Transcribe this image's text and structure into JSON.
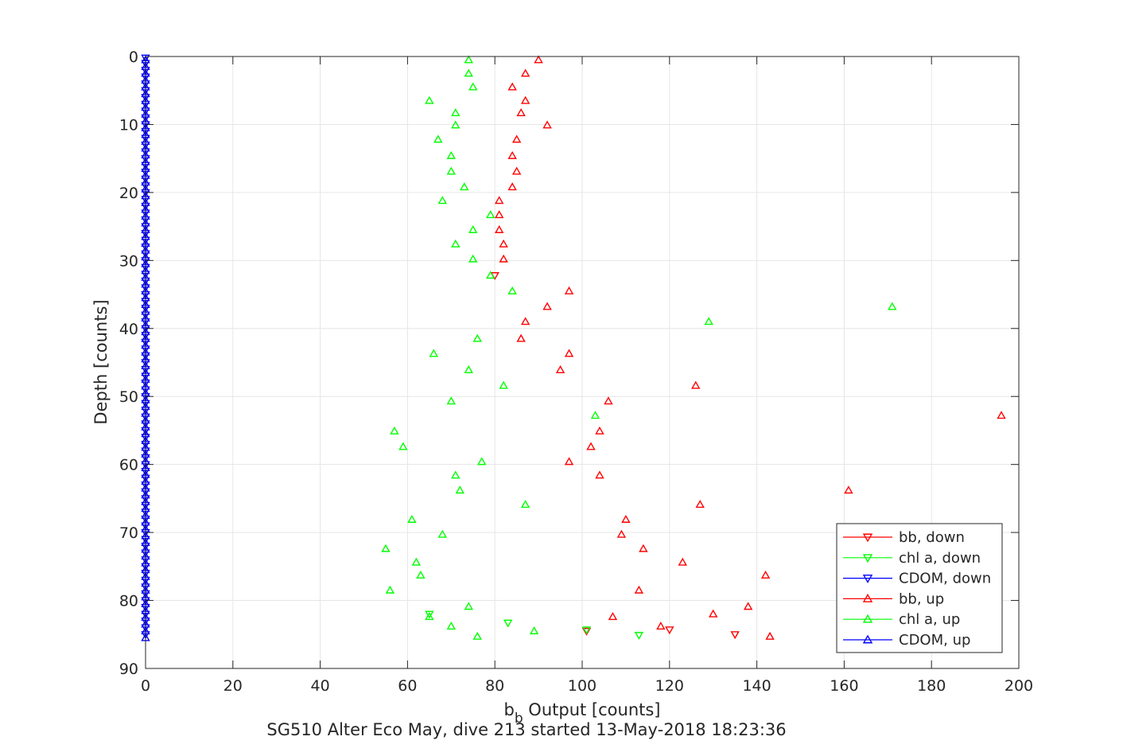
{
  "chart_data": {
    "type": "scatter",
    "title": "SG510 Alter Eco May, dive 213 started 13-May-2018 18:23:36",
    "xlabel": "b_b Output [counts]",
    "xlabel_main": "b",
    "xlabel_sub": "b",
    "xlabel_rest": " Output [counts]",
    "ylabel": "Depth [counts]",
    "xlim": [
      0,
      200
    ],
    "ylim": [
      0,
      90
    ],
    "y_reversed": true,
    "grid": true,
    "x_ticks": [
      0,
      20,
      40,
      60,
      80,
      100,
      120,
      140,
      160,
      180,
      200
    ],
    "y_ticks": [
      0,
      10,
      20,
      30,
      40,
      50,
      60,
      70,
      80,
      90
    ],
    "legend_position": "bottom-right",
    "series": [
      {
        "name": "bb, down",
        "color": "#ff0000",
        "marker": "triangle-down",
        "points": [
          [
            80,
            32.2
          ],
          [
            101,
            84.5
          ],
          [
            120,
            84.3
          ],
          [
            135,
            85.0
          ]
        ]
      },
      {
        "name": "chl a, down",
        "color": "#00ff00",
        "marker": "triangle-down",
        "points": [
          [
            65,
            82.0
          ],
          [
            83,
            83.3
          ],
          [
            101,
            84.3
          ],
          [
            113,
            85.1
          ]
        ]
      },
      {
        "name": "CDOM, down",
        "color": "#0000ff",
        "marker": "triangle-down",
        "points": [
          [
            0,
            0.2
          ],
          [
            0,
            1.0
          ],
          [
            0,
            2.0
          ],
          [
            0,
            3.0
          ],
          [
            0,
            4.0
          ],
          [
            0,
            5.0
          ],
          [
            0,
            6.0
          ],
          [
            0,
            7.0
          ],
          [
            0,
            8.0
          ],
          [
            0,
            9.0
          ],
          [
            0,
            10.0
          ],
          [
            0,
            11.0
          ],
          [
            0,
            12.0
          ],
          [
            0,
            13.0
          ],
          [
            0,
            14.0
          ],
          [
            0,
            15.0
          ],
          [
            0,
            16.0
          ],
          [
            0,
            17.0
          ],
          [
            0,
            18.0
          ],
          [
            0,
            19.0
          ],
          [
            0,
            20.0
          ],
          [
            0,
            21.0
          ],
          [
            0,
            22.0
          ],
          [
            0,
            23.0
          ],
          [
            0,
            24.0
          ],
          [
            0,
            25.0
          ],
          [
            0,
            26.0
          ],
          [
            0,
            27.0
          ],
          [
            0,
            28.0
          ],
          [
            0,
            29.0
          ],
          [
            0,
            30.0
          ],
          [
            0,
            31.0
          ],
          [
            0,
            32.0
          ],
          [
            0,
            33.0
          ],
          [
            0,
            34.0
          ],
          [
            0,
            35.0
          ],
          [
            0,
            36.0
          ],
          [
            0,
            37.0
          ],
          [
            0,
            38.0
          ],
          [
            0,
            39.0
          ],
          [
            0,
            40.0
          ],
          [
            0,
            41.0
          ],
          [
            0,
            42.0
          ],
          [
            0,
            43.0
          ],
          [
            0,
            44.0
          ],
          [
            0,
            45.0
          ],
          [
            0,
            46.0
          ],
          [
            0,
            47.0
          ],
          [
            0,
            48.0
          ],
          [
            0,
            49.0
          ],
          [
            0,
            50.0
          ],
          [
            0,
            51.0
          ],
          [
            0,
            52.0
          ],
          [
            0,
            53.0
          ],
          [
            0,
            54.0
          ],
          [
            0,
            55.0
          ],
          [
            0,
            56.0
          ],
          [
            0,
            57.0
          ],
          [
            0,
            58.0
          ],
          [
            0,
            59.0
          ],
          [
            0,
            60.0
          ],
          [
            0,
            61.0
          ],
          [
            0,
            62.0
          ],
          [
            0,
            63.0
          ],
          [
            0,
            64.0
          ],
          [
            0,
            65.0
          ],
          [
            0,
            66.0
          ],
          [
            0,
            67.0
          ],
          [
            0,
            68.0
          ],
          [
            0,
            69.0
          ],
          [
            0,
            70.0
          ],
          [
            0,
            71.0
          ],
          [
            0,
            72.0
          ],
          [
            0,
            73.0
          ],
          [
            0,
            74.0
          ],
          [
            0,
            75.0
          ],
          [
            0,
            76.0
          ],
          [
            0,
            77.0
          ],
          [
            0,
            78.0
          ],
          [
            0,
            79.0
          ],
          [
            0,
            80.0
          ],
          [
            0,
            81.0
          ],
          [
            0,
            82.0
          ],
          [
            0,
            83.0
          ],
          [
            0,
            84.0
          ],
          [
            0,
            85.0
          ]
        ]
      },
      {
        "name": "bb, up",
        "color": "#ff0000",
        "marker": "triangle-up",
        "points": [
          [
            90,
            0.5
          ],
          [
            87,
            2.5
          ],
          [
            84,
            4.5
          ],
          [
            87,
            6.5
          ],
          [
            86,
            8.3
          ],
          [
            92,
            10.1
          ],
          [
            85,
            12.2
          ],
          [
            84,
            14.6
          ],
          [
            85,
            16.9
          ],
          [
            84,
            19.2
          ],
          [
            81,
            21.2
          ],
          [
            81,
            23.3
          ],
          [
            81,
            25.5
          ],
          [
            82,
            27.6
          ],
          [
            82,
            29.8
          ],
          [
            97,
            34.5
          ],
          [
            92,
            36.8
          ],
          [
            87,
            39.0
          ],
          [
            86,
            41.5
          ],
          [
            97,
            43.7
          ],
          [
            95,
            46.1
          ],
          [
            126,
            48.4
          ],
          [
            106,
            50.7
          ],
          [
            196,
            52.8
          ],
          [
            104,
            55.1
          ],
          [
            102,
            57.4
          ],
          [
            97,
            59.6
          ],
          [
            104,
            61.6
          ],
          [
            161,
            63.8
          ],
          [
            127,
            65.9
          ],
          [
            110,
            68.1
          ],
          [
            109,
            70.3
          ],
          [
            114,
            72.4
          ],
          [
            123,
            74.4
          ],
          [
            142,
            76.3
          ],
          [
            113,
            78.5
          ],
          [
            138,
            80.9
          ],
          [
            130,
            82.0
          ],
          [
            107,
            82.4
          ],
          [
            118,
            83.8
          ],
          [
            143,
            85.3
          ]
        ]
      },
      {
        "name": "chl a, up",
        "color": "#00ff00",
        "marker": "triangle-up",
        "points": [
          [
            74,
            0.5
          ],
          [
            74,
            2.5
          ],
          [
            75,
            4.5
          ],
          [
            65,
            6.5
          ],
          [
            71,
            8.3
          ],
          [
            71,
            10.1
          ],
          [
            67,
            12.2
          ],
          [
            70,
            14.6
          ],
          [
            70,
            16.9
          ],
          [
            73,
            19.2
          ],
          [
            68,
            21.2
          ],
          [
            79,
            23.3
          ],
          [
            75,
            25.5
          ],
          [
            71,
            27.6
          ],
          [
            75,
            29.8
          ],
          [
            79,
            32.2
          ],
          [
            84,
            34.5
          ],
          [
            171,
            36.8
          ],
          [
            129,
            39.0
          ],
          [
            76,
            41.5
          ],
          [
            66,
            43.7
          ],
          [
            74,
            46.1
          ],
          [
            82,
            48.4
          ],
          [
            70,
            50.7
          ],
          [
            103,
            52.8
          ],
          [
            57,
            55.1
          ],
          [
            59,
            57.4
          ],
          [
            77,
            59.6
          ],
          [
            71,
            61.6
          ],
          [
            72,
            63.8
          ],
          [
            87,
            65.9
          ],
          [
            61,
            68.1
          ],
          [
            68,
            70.3
          ],
          [
            55,
            72.4
          ],
          [
            62,
            74.4
          ],
          [
            63,
            76.3
          ],
          [
            56,
            78.5
          ],
          [
            74,
            80.9
          ],
          [
            65,
            82.4
          ],
          [
            70,
            83.8
          ],
          [
            89,
            84.5
          ],
          [
            76,
            85.3
          ]
        ]
      },
      {
        "name": "CDOM, up",
        "color": "#0000ff",
        "marker": "triangle-up",
        "points": [
          [
            0,
            0.5
          ],
          [
            0,
            1.5
          ],
          [
            0,
            2.5
          ],
          [
            0,
            3.5
          ],
          [
            0,
            4.5
          ],
          [
            0,
            5.5
          ],
          [
            0,
            6.5
          ],
          [
            0,
            7.5
          ],
          [
            0,
            8.5
          ],
          [
            0,
            9.5
          ],
          [
            0,
            10.5
          ],
          [
            0,
            11.5
          ],
          [
            0,
            12.5
          ],
          [
            0,
            13.5
          ],
          [
            0,
            14.5
          ],
          [
            0,
            15.5
          ],
          [
            0,
            16.5
          ],
          [
            0,
            17.5
          ],
          [
            0,
            18.5
          ],
          [
            0,
            19.5
          ],
          [
            0,
            20.5
          ],
          [
            0,
            21.5
          ],
          [
            0,
            22.5
          ],
          [
            0,
            23.5
          ],
          [
            0,
            24.5
          ],
          [
            0,
            25.5
          ],
          [
            0,
            26.5
          ],
          [
            0,
            27.5
          ],
          [
            0,
            28.5
          ],
          [
            0,
            29.5
          ],
          [
            0,
            30.5
          ],
          [
            0,
            31.5
          ],
          [
            0,
            32.5
          ],
          [
            0,
            33.5
          ],
          [
            0,
            34.5
          ],
          [
            0,
            35.5
          ],
          [
            0,
            36.5
          ],
          [
            0,
            37.5
          ],
          [
            0,
            38.5
          ],
          [
            0,
            39.5
          ],
          [
            0,
            40.5
          ],
          [
            0,
            41.5
          ],
          [
            0,
            42.5
          ],
          [
            0,
            43.5
          ],
          [
            0,
            44.5
          ],
          [
            0,
            45.5
          ],
          [
            0,
            46.5
          ],
          [
            0,
            47.5
          ],
          [
            0,
            48.5
          ],
          [
            0,
            49.5
          ],
          [
            0,
            50.5
          ],
          [
            0,
            51.5
          ],
          [
            0,
            52.5
          ],
          [
            0,
            53.5
          ],
          [
            0,
            54.5
          ],
          [
            0,
            55.5
          ],
          [
            0,
            56.5
          ],
          [
            0,
            57.5
          ],
          [
            0,
            58.5
          ],
          [
            0,
            59.5
          ],
          [
            0,
            60.5
          ],
          [
            0,
            61.5
          ],
          [
            0,
            62.5
          ],
          [
            0,
            63.5
          ],
          [
            0,
            64.5
          ],
          [
            0,
            65.5
          ],
          [
            0,
            66.5
          ],
          [
            0,
            67.5
          ],
          [
            0,
            68.5
          ],
          [
            0,
            69.5
          ],
          [
            0,
            70.5
          ],
          [
            0,
            71.5
          ],
          [
            0,
            72.5
          ],
          [
            0,
            73.5
          ],
          [
            0,
            74.5
          ],
          [
            0,
            75.5
          ],
          [
            0,
            76.5
          ],
          [
            0,
            77.5
          ],
          [
            0,
            78.5
          ],
          [
            0,
            79.5
          ],
          [
            0,
            80.5
          ],
          [
            0,
            81.5
          ],
          [
            0,
            82.5
          ],
          [
            0,
            83.5
          ],
          [
            0,
            84.5
          ],
          [
            0,
            85.5
          ]
        ]
      }
    ]
  }
}
